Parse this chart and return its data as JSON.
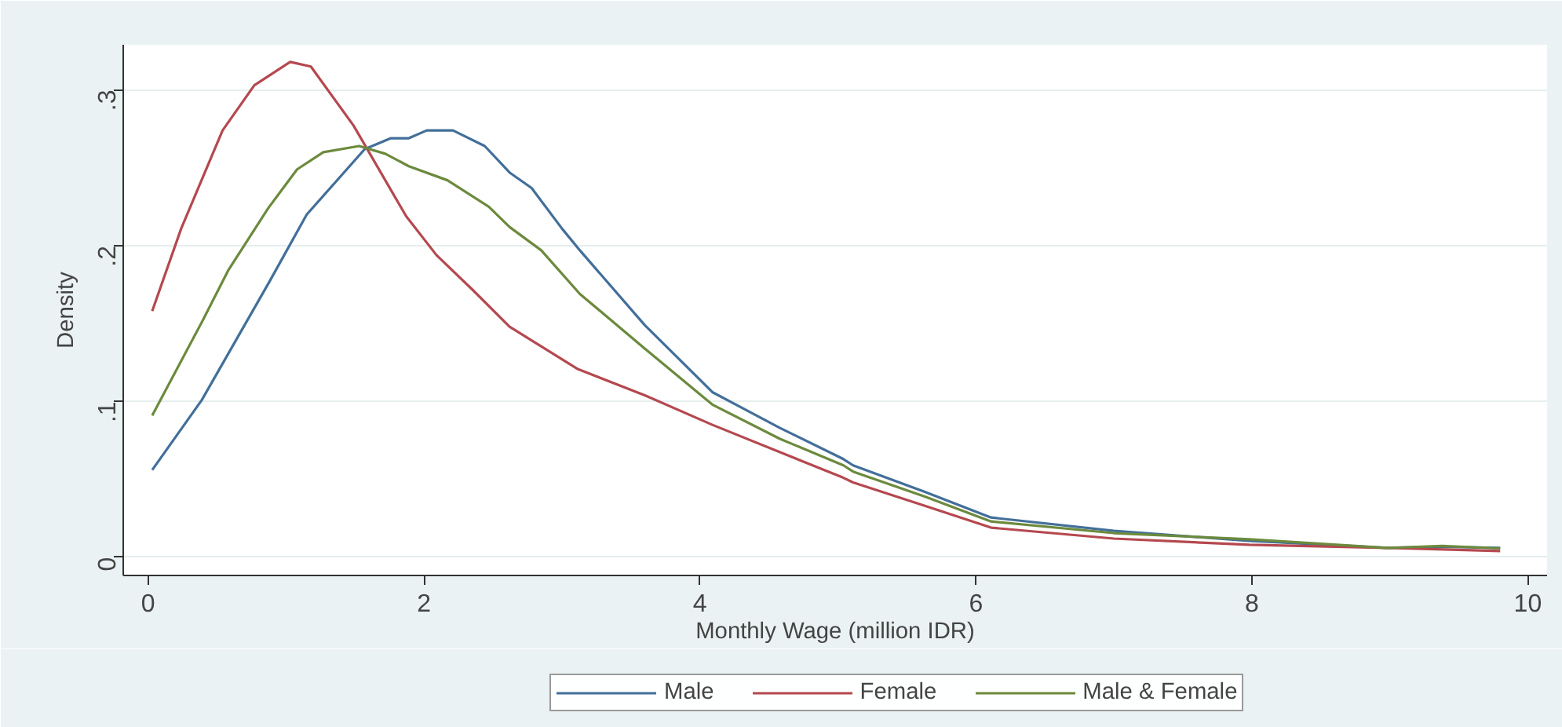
{
  "chart_data": {
    "type": "line",
    "xlabel": "Monthly Wage (million IDR)",
    "ylabel": "Density",
    "xlim": [
      -0.18,
      10.14
    ],
    "ylim": [
      -0.0117,
      0.329
    ],
    "xticks": [
      0,
      2,
      4,
      6,
      8,
      10
    ],
    "yticks": [
      {
        "value": 0,
        "label": "0"
      },
      {
        "value": 0.1,
        "label": ".1"
      },
      {
        "value": 0.2,
        "label": ".2"
      },
      {
        "value": 0.3,
        "label": ".3"
      }
    ],
    "grid": "y",
    "legend": "bottom",
    "marker": "none",
    "line_style": "solid",
    "series": [
      {
        "name": "Male",
        "color": "#426f9a",
        "x": [
          0.03,
          0.39,
          0.88,
          1.15,
          1.57,
          1.76,
          1.89,
          2.02,
          2.21,
          2.44,
          2.62,
          2.78,
          3.0,
          3.13,
          3.6,
          4.09,
          4.58,
          5.04,
          5.11,
          5.63,
          6.11,
          7.0,
          7.98,
          8.98,
          9.38,
          9.8
        ],
        "values": [
          0.056,
          0.101,
          0.177,
          0.22,
          0.262,
          0.269,
          0.269,
          0.274,
          0.274,
          0.264,
          0.247,
          0.237,
          0.211,
          0.197,
          0.149,
          0.106,
          0.083,
          0.063,
          0.059,
          0.042,
          0.0255,
          0.017,
          0.0105,
          0.006,
          0.0067,
          0.006
        ]
      },
      {
        "name": "Female",
        "color": "#b5484f",
        "x": [
          0.03,
          0.24,
          0.54,
          0.77,
          1.03,
          1.18,
          1.49,
          1.87,
          2.09,
          2.36,
          2.62,
          3.11,
          3.6,
          4.09,
          5.04,
          5.11,
          5.63,
          6.11,
          7.0,
          7.98,
          8.98,
          9.8
        ],
        "values": [
          0.158,
          0.211,
          0.274,
          0.303,
          0.318,
          0.315,
          0.277,
          0.219,
          0.194,
          0.171,
          0.148,
          0.121,
          0.104,
          0.085,
          0.051,
          0.048,
          0.033,
          0.019,
          0.012,
          0.008,
          0.006,
          0.004
        ]
      },
      {
        "name": "Male & Female",
        "color": "#6c8a3d",
        "x": [
          0.03,
          0.39,
          0.58,
          0.87,
          1.08,
          1.27,
          1.53,
          1.72,
          1.89,
          2.17,
          2.47,
          2.62,
          2.85,
          3.13,
          3.6,
          4.09,
          4.58,
          5.04,
          5.11,
          5.63,
          6.11,
          7.0,
          7.98,
          8.98,
          9.38,
          9.8
        ],
        "values": [
          0.091,
          0.151,
          0.184,
          0.224,
          0.249,
          0.26,
          0.264,
          0.259,
          0.251,
          0.242,
          0.225,
          0.212,
          0.197,
          0.169,
          0.134,
          0.098,
          0.076,
          0.059,
          0.055,
          0.039,
          0.023,
          0.0155,
          0.0115,
          0.006,
          0.0073,
          0.0057
        ]
      }
    ]
  }
}
